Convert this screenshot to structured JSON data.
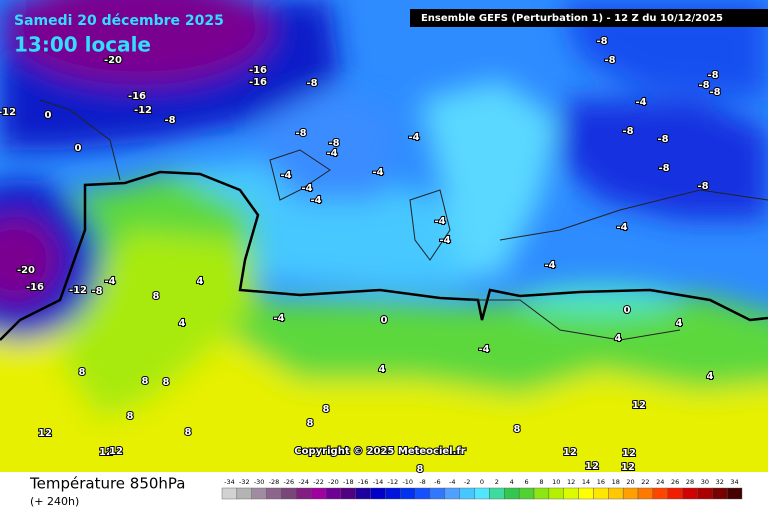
{
  "header": {
    "date": "Samedi 20 décembre 2025",
    "time": "13:00 locale",
    "model": "Ensemble GEFS  (Perturbation 1)  -  12 Z du 10/12/2025"
  },
  "copyright": "Copyright © 2025 Meteociel.fr",
  "footer": {
    "title": "Température 850hPa",
    "lead": "(+ 240h)"
  },
  "map": {
    "contour_labels": [
      -20,
      -16,
      -16,
      -8,
      -16,
      -12,
      -8,
      -12,
      0,
      0,
      -8,
      -8,
      -4,
      -4,
      -4,
      -4,
      -4,
      -4,
      -4,
      -4,
      -4,
      -4,
      -8,
      -8,
      -8,
      -8,
      -8,
      -4,
      -8,
      -8,
      -8,
      -8,
      -20,
      -16,
      -12,
      -8,
      -4,
      8,
      4,
      4,
      -4,
      0,
      0,
      4,
      4,
      -4,
      4,
      4,
      8,
      8,
      8,
      8,
      8,
      8,
      8,
      8,
      12,
      12,
      12,
      12,
      12,
      12,
      12,
      12,
      8
    ]
  },
  "colorbar": {
    "ticks": [
      -34,
      -32,
      -30,
      -28,
      -26,
      -24,
      -22,
      -20,
      -18,
      -16,
      -14,
      -12,
      -10,
      -8,
      -6,
      -4,
      -2,
      0,
      2,
      4,
      6,
      8,
      10,
      12,
      14,
      16,
      18,
      20,
      22,
      24,
      26,
      28,
      30,
      32,
      34
    ],
    "colors": [
      "#d2d2d2",
      "#b4b4b4",
      "#a08ca0",
      "#8c648c",
      "#784678",
      "#821e82",
      "#a000a0",
      "#6e0096",
      "#500082",
      "#1e00a0",
      "#0000c8",
      "#0014dc",
      "#0032f0",
      "#1450ff",
      "#3278ff",
      "#50a0ff",
      "#46c8ff",
      "#50e6ff",
      "#3cdca0",
      "#32c850",
      "#50d232",
      "#8ce614",
      "#b4f000",
      "#dcfa00",
      "#ffff00",
      "#ffe600",
      "#ffc800",
      "#ffa000",
      "#ff7800",
      "#ff4600",
      "#f01e00",
      "#d20000",
      "#aa0000",
      "#780000",
      "#460000"
    ]
  }
}
